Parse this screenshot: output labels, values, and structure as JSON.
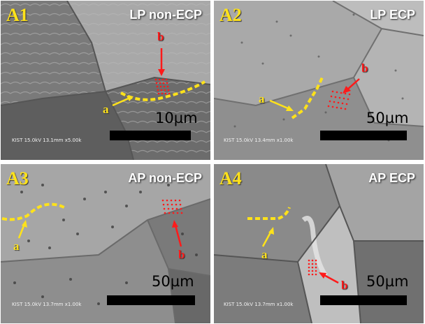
{
  "panels": [
    {
      "id": "A1",
      "title": "LP non-ECP",
      "scale": "10µm",
      "meta": "KIST 15.0kV 13.1mm x5.00k",
      "marker_a": "a",
      "marker_b": "b"
    },
    {
      "id": "A2",
      "title": "LP ECP",
      "scale": "50µm",
      "meta": "KIST 15.0kV 13.4mm x1.00k",
      "marker_a": "a",
      "marker_b": "b"
    },
    {
      "id": "A3",
      "title": "AP non-ECP",
      "scale": "50µm",
      "meta": "KIST 15.0kV 13.7mm x1.00k",
      "marker_a": "a",
      "marker_b": "b"
    },
    {
      "id": "A4",
      "title": "AP ECP",
      "scale": "50µm",
      "meta": "KIST 15.0kV 13.7mm x1.00k",
      "marker_a": "a",
      "marker_b": "b"
    }
  ],
  "colors": {
    "label": "#ffe21a",
    "boundary_line": "#ffe21a",
    "region_box": "#ff1a1a"
  }
}
